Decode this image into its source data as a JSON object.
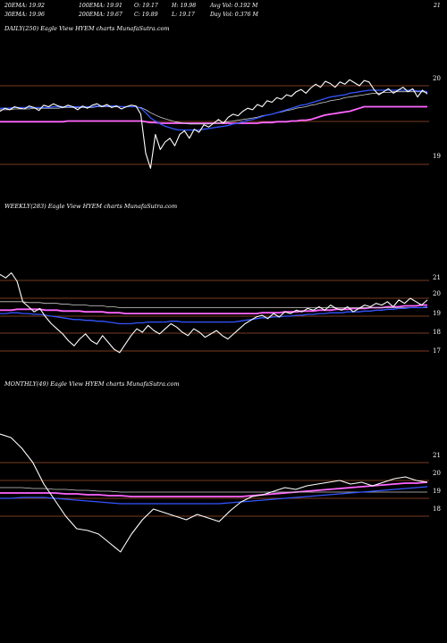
{
  "header": {
    "row1": [
      "20EMA: 19.92",
      "100EMA: 19.91",
      "O: 19.17",
      "H: 19.98",
      "Avg Vol: 0.192 M",
      "21"
    ],
    "row2": [
      "30EMA: 19.96",
      "200EMA: 19.67",
      "C: 19.89",
      "L: 19.17",
      "Day Vol: 0.376 M"
    ]
  },
  "colors": {
    "price": "#ffffff",
    "ema_short": "#3355ff",
    "ema_mid": "#cccccc",
    "ema_long": "#ff66ff",
    "grid": "#a0522d"
  },
  "chart_data": [
    {
      "type": "line",
      "title": "DAILY(250) Eagle  View  HYEM charts MunafaSutra.com",
      "ticks": [
        "20",
        "19"
      ],
      "series": [
        {
          "values": [
            19.66,
            19.7,
            19.68,
            19.72,
            19.7,
            19.69,
            19.73,
            19.71,
            19.67,
            19.74,
            19.72,
            19.76,
            19.73,
            19.71,
            19.74,
            19.72,
            19.68,
            19.73,
            19.7,
            19.74,
            19.76,
            19.72,
            19.75,
            19.71,
            19.73,
            19.69,
            19.72,
            19.74,
            19.73,
            19.62,
            19.1,
            18.9,
            19.35,
            19.15,
            19.25,
            19.3,
            19.2,
            19.35,
            19.4,
            19.3,
            19.42,
            19.38,
            19.48,
            19.45,
            19.5,
            19.55,
            19.5,
            19.58,
            19.62,
            19.6,
            19.66,
            19.7,
            19.68,
            19.75,
            19.72,
            19.8,
            19.78,
            19.84,
            19.82,
            19.88,
            19.86,
            19.92,
            19.95,
            19.9,
            19.97,
            20.02,
            19.98,
            20.06,
            20.03,
            19.98,
            20.05,
            20.02,
            20.08,
            20.04,
            20.0,
            20.07,
            20.05,
            19.95,
            19.88,
            19.92,
            19.96,
            19.9,
            19.94,
            19.98,
            19.92,
            19.96,
            19.85,
            19.94,
            19.89
          ]
        },
        {
          "values": [
            19.7,
            19.7,
            19.7,
            19.71,
            19.71,
            19.71,
            19.71,
            19.71,
            19.71,
            19.71,
            19.71,
            19.72,
            19.72,
            19.72,
            19.72,
            19.72,
            19.72,
            19.72,
            19.72,
            19.72,
            19.73,
            19.73,
            19.73,
            19.73,
            19.73,
            19.72,
            19.72,
            19.72,
            19.72,
            19.7,
            19.64,
            19.57,
            19.53,
            19.49,
            19.46,
            19.44,
            19.42,
            19.41,
            19.41,
            19.41,
            19.41,
            19.41,
            19.42,
            19.43,
            19.44,
            19.45,
            19.46,
            19.47,
            19.49,
            19.5,
            19.52,
            19.54,
            19.55,
            19.57,
            19.59,
            19.61,
            19.62,
            19.64,
            19.66,
            19.68,
            19.7,
            19.72,
            19.74,
            19.75,
            19.77,
            19.79,
            19.81,
            19.83,
            19.85,
            19.86,
            19.87,
            19.88,
            19.9,
            19.91,
            19.92,
            19.93,
            19.94,
            19.94,
            19.94,
            19.94,
            19.94,
            19.94,
            19.94,
            19.94,
            19.94,
            19.94,
            19.93,
            19.93,
            19.92
          ]
        },
        {
          "values": [
            19.68,
            19.68,
            19.68,
            19.69,
            19.69,
            19.69,
            19.69,
            19.7,
            19.7,
            19.7,
            19.7,
            19.7,
            19.7,
            19.71,
            19.71,
            19.71,
            19.71,
            19.71,
            19.71,
            19.71,
            19.72,
            19.72,
            19.72,
            19.72,
            19.72,
            19.72,
            19.72,
            19.72,
            19.72,
            19.71,
            19.68,
            19.64,
            19.61,
            19.58,
            19.56,
            19.54,
            19.52,
            19.51,
            19.5,
            19.49,
            19.49,
            19.49,
            19.49,
            19.49,
            19.5,
            19.5,
            19.51,
            19.52,
            19.53,
            19.54,
            19.55,
            19.56,
            19.57,
            19.58,
            19.6,
            19.61,
            19.62,
            19.64,
            19.65,
            19.67,
            19.68,
            19.7,
            19.71,
            19.72,
            19.74,
            19.75,
            19.77,
            19.78,
            19.8,
            19.81,
            19.82,
            19.84,
            19.85,
            19.86,
            19.87,
            19.88,
            19.89,
            19.9,
            19.9,
            19.91,
            19.91,
            19.92,
            19.92,
            19.92,
            19.92,
            19.92,
            19.92,
            19.92,
            19.91
          ]
        },
        {
          "values": [
            19.52,
            19.52,
            19.52,
            19.52,
            19.52,
            19.52,
            19.52,
            19.52,
            19.52,
            19.52,
            19.52,
            19.52,
            19.52,
            19.52,
            19.53,
            19.53,
            19.53,
            19.53,
            19.53,
            19.53,
            19.53,
            19.53,
            19.53,
            19.53,
            19.53,
            19.53,
            19.53,
            19.53,
            19.53,
            19.53,
            19.52,
            19.51,
            19.51,
            19.5,
            19.5,
            19.5,
            19.5,
            19.5,
            19.5,
            19.5,
            19.5,
            19.5,
            19.5,
            19.5,
            19.5,
            19.5,
            19.5,
            19.5,
            19.5,
            19.5,
            19.5,
            19.5,
            19.5,
            19.5,
            19.51,
            19.51,
            19.51,
            19.52,
            19.52,
            19.52,
            19.53,
            19.53,
            19.54,
            19.54,
            19.55,
            19.57,
            19.59,
            19.61,
            19.62,
            19.63,
            19.64,
            19.65,
            19.66,
            19.68,
            19.7,
            19.72,
            19.72,
            19.72,
            19.72,
            19.72,
            19.72,
            19.72,
            19.72,
            19.72,
            19.72,
            19.72,
            19.72,
            19.72,
            19.72
          ]
        }
      ]
    },
    {
      "type": "line",
      "title": "WEEKLY(283) Eagle  View  HYEM charts MunafaSutra.com",
      "ticks": [
        "21",
        "20",
        "19",
        "18",
        "17"
      ],
      "series": [
        {
          "values": [
            21.4,
            21.2,
            21.5,
            21.0,
            19.8,
            19.5,
            19.2,
            19.4,
            18.9,
            18.5,
            18.2,
            17.9,
            17.5,
            17.2,
            17.6,
            17.9,
            17.5,
            17.3,
            17.8,
            17.4,
            17.0,
            16.8,
            17.3,
            17.8,
            18.2,
            18.0,
            18.4,
            18.1,
            17.9,
            18.2,
            18.5,
            18.3,
            18.0,
            17.8,
            18.2,
            18.0,
            17.7,
            17.9,
            18.1,
            17.8,
            17.6,
            17.9,
            18.2,
            18.5,
            18.7,
            18.9,
            19.0,
            18.8,
            19.1,
            18.9,
            19.2,
            19.1,
            19.3,
            19.2,
            19.4,
            19.3,
            19.5,
            19.3,
            19.6,
            19.4,
            19.3,
            19.5,
            19.2,
            19.4,
            19.6,
            19.5,
            19.7,
            19.6,
            19.8,
            19.5,
            19.9,
            19.7,
            20.0,
            19.8,
            19.6,
            19.9
          ]
        },
        {
          "values": [
            19.1,
            19.1,
            19.15,
            19.15,
            19.1,
            19.1,
            19.05,
            19.05,
            19.0,
            18.95,
            18.9,
            18.85,
            18.8,
            18.75,
            18.75,
            18.7,
            18.7,
            18.65,
            18.65,
            18.6,
            18.55,
            18.5,
            18.5,
            18.5,
            18.55,
            18.55,
            18.6,
            18.6,
            18.6,
            18.6,
            18.65,
            18.65,
            18.6,
            18.6,
            18.6,
            18.6,
            18.6,
            18.6,
            18.6,
            18.6,
            18.6,
            18.6,
            18.65,
            18.7,
            18.75,
            18.8,
            18.85,
            18.85,
            18.9,
            18.9,
            18.95,
            18.95,
            19.0,
            19.0,
            19.05,
            19.05,
            19.1,
            19.1,
            19.15,
            19.15,
            19.15,
            19.2,
            19.2,
            19.2,
            19.25,
            19.25,
            19.3,
            19.3,
            19.35,
            19.35,
            19.4,
            19.4,
            19.45,
            19.45,
            19.45,
            19.5
          ]
        },
        {
          "values": [
            19.8,
            19.8,
            19.8,
            19.8,
            19.8,
            19.75,
            19.75,
            19.75,
            19.7,
            19.7,
            19.7,
            19.65,
            19.65,
            19.6,
            19.6,
            19.6,
            19.55,
            19.55,
            19.55,
            19.5,
            19.5,
            19.45,
            19.45,
            19.45,
            19.45,
            19.45,
            19.45,
            19.45,
            19.45,
            19.45,
            19.45,
            19.45,
            19.45,
            19.45,
            19.45,
            19.45,
            19.45,
            19.45,
            19.45,
            19.45,
            19.45,
            19.45,
            19.45,
            19.45,
            19.45,
            19.45,
            19.45,
            19.45,
            19.45,
            19.45,
            19.45,
            19.45,
            19.45,
            19.45,
            19.45,
            19.45,
            19.45,
            19.45,
            19.45,
            19.45,
            19.45,
            19.45,
            19.45,
            19.45,
            19.45,
            19.45,
            19.45,
            19.45,
            19.45,
            19.45,
            19.45,
            19.45,
            19.45,
            19.45,
            19.45,
            19.45
          ]
        },
        {
          "values": [
            19.3,
            19.3,
            19.3,
            19.35,
            19.35,
            19.35,
            19.35,
            19.35,
            19.3,
            19.3,
            19.3,
            19.25,
            19.25,
            19.25,
            19.25,
            19.2,
            19.2,
            19.2,
            19.2,
            19.15,
            19.15,
            19.15,
            19.1,
            19.1,
            19.1,
            19.1,
            19.1,
            19.1,
            19.1,
            19.1,
            19.1,
            19.1,
            19.1,
            19.1,
            19.1,
            19.1,
            19.1,
            19.1,
            19.1,
            19.1,
            19.1,
            19.1,
            19.1,
            19.1,
            19.1,
            19.1,
            19.15,
            19.15,
            19.15,
            19.15,
            19.2,
            19.2,
            19.2,
            19.25,
            19.25,
            19.25,
            19.3,
            19.3,
            19.3,
            19.35,
            19.35,
            19.35,
            19.4,
            19.4,
            19.4,
            19.45,
            19.45,
            19.45,
            19.5,
            19.5,
            19.5,
            19.55,
            19.55,
            19.55,
            19.6,
            19.6
          ]
        }
      ]
    },
    {
      "type": "line",
      "title": "MONTHLY(49) Eagle  View  HYEM charts MunafaSutra.com",
      "ticks": [
        "21",
        "20",
        "19",
        "18"
      ],
      "series": [
        {
          "values": [
            22.6,
            22.4,
            21.8,
            21.0,
            19.8,
            18.9,
            18.0,
            17.3,
            17.2,
            17.0,
            16.5,
            16.0,
            17.0,
            17.8,
            18.4,
            18.2,
            18.0,
            17.8,
            18.1,
            17.9,
            17.7,
            18.3,
            18.8,
            19.1,
            19.2,
            19.4,
            19.6,
            19.5,
            19.7,
            19.8,
            19.9,
            20.0,
            19.8,
            19.9,
            19.7,
            19.9,
            20.1,
            20.2,
            20.0,
            19.9
          ]
        },
        {
          "values": [
            19.0,
            19.0,
            19.05,
            19.05,
            19.05,
            19.0,
            18.95,
            18.9,
            18.85,
            18.8,
            18.75,
            18.7,
            18.7,
            18.7,
            18.7,
            18.7,
            18.7,
            18.7,
            18.7,
            18.7,
            18.7,
            18.75,
            18.8,
            18.85,
            18.9,
            18.95,
            19.0,
            19.05,
            19.1,
            19.15,
            19.2,
            19.25,
            19.3,
            19.35,
            19.4,
            19.45,
            19.5,
            19.55,
            19.6,
            19.65
          ]
        },
        {
          "values": [
            19.6,
            19.6,
            19.6,
            19.55,
            19.55,
            19.5,
            19.5,
            19.45,
            19.45,
            19.4,
            19.4,
            19.35,
            19.35,
            19.35,
            19.35,
            19.35,
            19.35,
            19.35,
            19.35,
            19.35,
            19.35,
            19.35,
            19.35,
            19.35,
            19.35,
            19.35,
            19.35,
            19.35,
            19.35,
            19.35,
            19.35,
            19.35,
            19.35,
            19.35,
            19.35,
            19.35,
            19.35,
            19.35,
            19.35,
            19.35
          ]
        },
        {
          "values": [
            19.3,
            19.3,
            19.3,
            19.3,
            19.3,
            19.3,
            19.25,
            19.25,
            19.2,
            19.2,
            19.15,
            19.15,
            19.1,
            19.1,
            19.1,
            19.1,
            19.1,
            19.1,
            19.1,
            19.1,
            19.1,
            19.1,
            19.1,
            19.15,
            19.2,
            19.25,
            19.3,
            19.35,
            19.4,
            19.45,
            19.5,
            19.55,
            19.6,
            19.65,
            19.7,
            19.75,
            19.8,
            19.85,
            19.85,
            19.9
          ]
        }
      ]
    }
  ]
}
